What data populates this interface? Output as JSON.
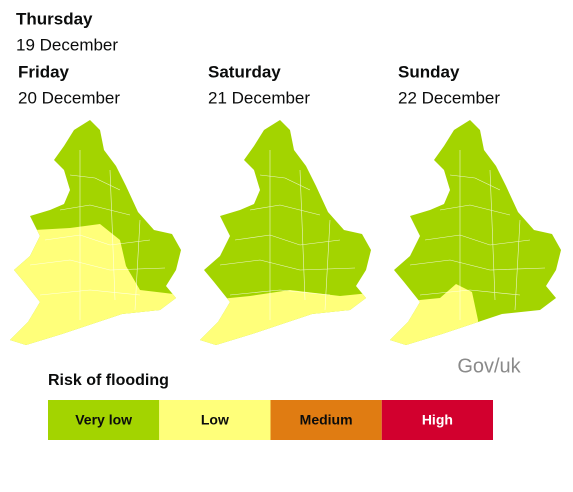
{
  "days": [
    {
      "day": "Thursday",
      "date": "19 December"
    },
    {
      "day": "Friday",
      "date": "20 December"
    },
    {
      "day": "Saturday",
      "date": "21 December"
    },
    {
      "day": "Sunday",
      "date": "22 December"
    }
  ],
  "source": "Gov/uk",
  "legend": {
    "title": "Risk of flooding",
    "items": [
      {
        "label": "Very low",
        "color": "#a3d400"
      },
      {
        "label": "Low",
        "color": "#ffff7a"
      },
      {
        "label": "Medium",
        "color": "#e07c12"
      },
      {
        "label": "High",
        "color": "#d2002e"
      }
    ]
  }
}
